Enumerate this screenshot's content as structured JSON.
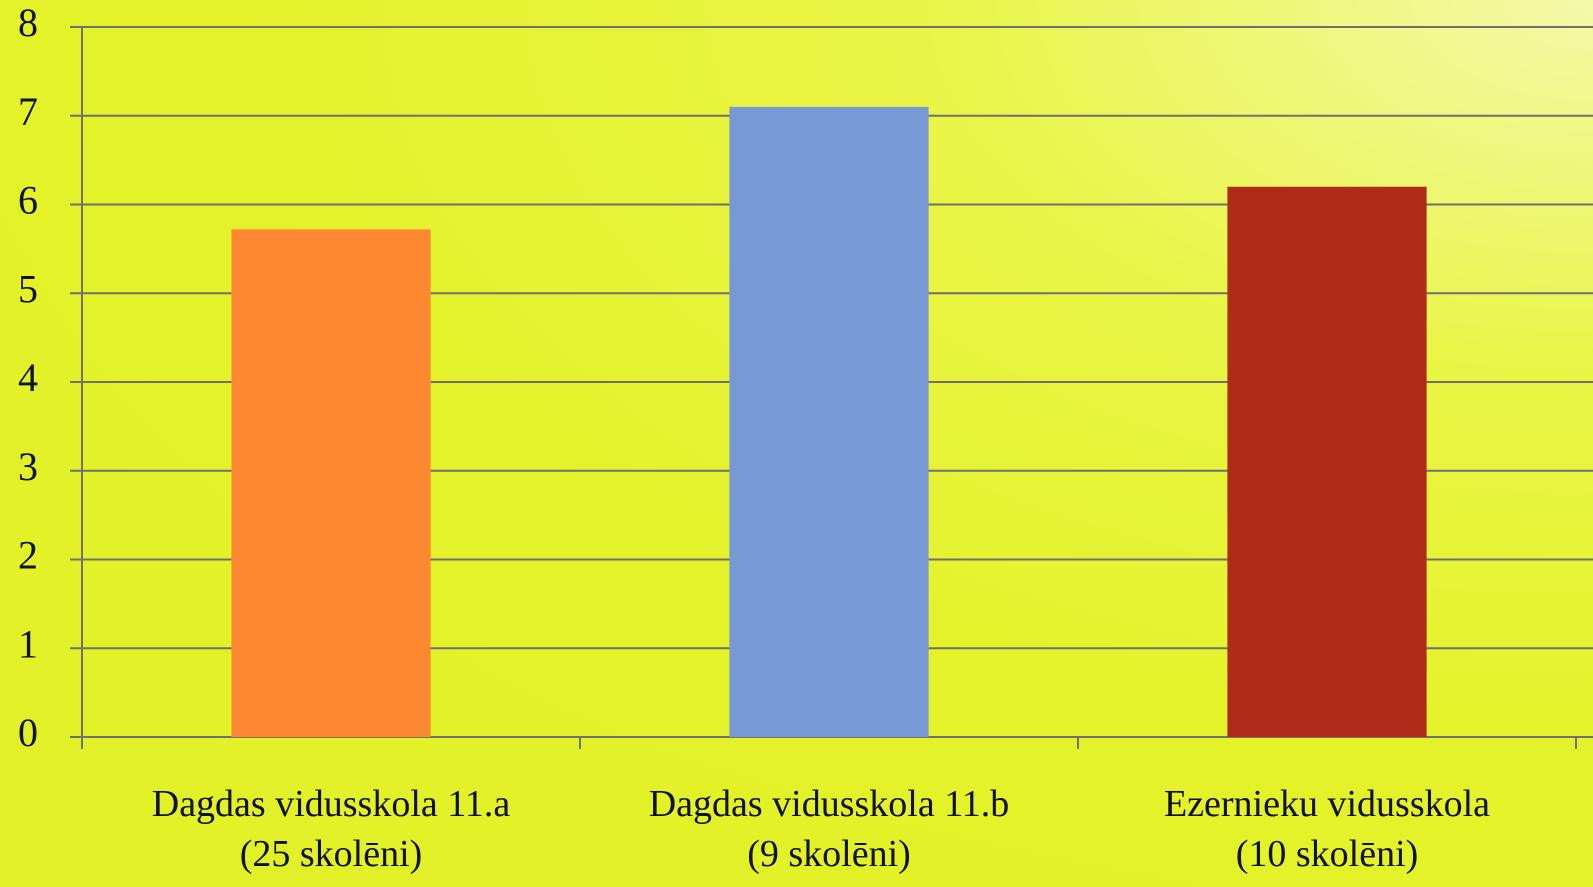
{
  "chart_data": {
    "type": "bar",
    "categories": [
      "Dagdas vidusskola 11.a\n(25 skolēni)",
      "Dagdas vidusskola 11.b\n(9 skolēni)",
      "Ezernieku vidusskola\n(10 skolēni)"
    ],
    "values": [
      5.72,
      7.1,
      6.2
    ],
    "colors": [
      "#ff8833",
      "#7799d6",
      "#b02a18"
    ],
    "ylim": [
      0,
      8
    ],
    "yticks": [
      0,
      1,
      2,
      3,
      4,
      5,
      6,
      7,
      8
    ],
    "grid": true
  }
}
